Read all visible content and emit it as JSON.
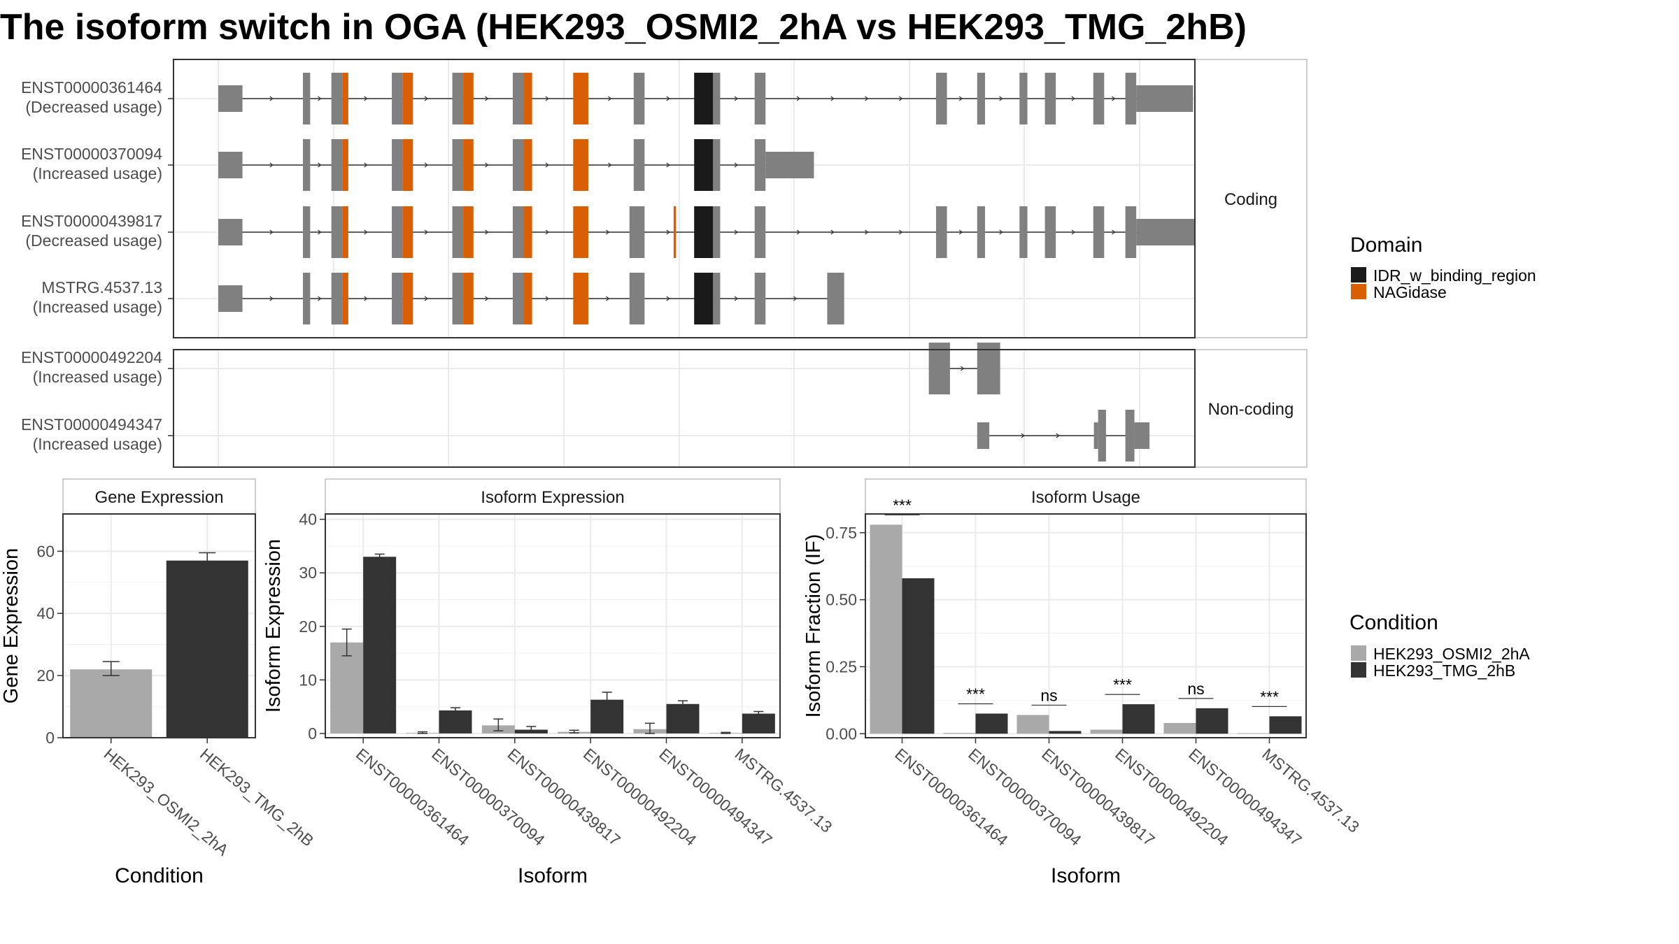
{
  "title": "The isoform switch in OGA (HEK293_OSMI2_2hA vs HEK293_TMG_2hB)",
  "colors": {
    "exon": "#808080",
    "IDR_w_binding_region": "#1a1a1a",
    "NAGidase": "#d95f02",
    "condA": "#a9a9a9",
    "condB": "#333333",
    "grid": "#ebebeb",
    "strip_bg": "#ffffff",
    "panel_border": "#333333"
  },
  "structure": {
    "coding_label": "Coding",
    "noncoding_label": "Non-coding",
    "isoforms": [
      {
        "id": "ENST00000361464",
        "usage": "(Decreased usage)",
        "group": "coding",
        "exons": [
          [
            0,
            40
          ],
          [
            140,
            152
          ],
          [
            187,
            205
          ],
          [
            287,
            305
          ],
          [
            387,
            405
          ],
          [
            487,
            505
          ],
          [
            587,
            612
          ],
          [
            687,
            705
          ],
          [
            787,
            830
          ],
          [
            887,
            905
          ],
          [
            1187,
            1205
          ],
          [
            1255,
            1268
          ],
          [
            1325,
            1338
          ],
          [
            1367,
            1385
          ],
          [
            1447,
            1465
          ],
          [
            1500,
            1612
          ]
        ],
        "domains": [
          {
            "name": "NAGidase",
            "from": 205,
            "to": 215
          },
          {
            "name": "NAGidase",
            "from": 305,
            "to": 322
          },
          {
            "name": "NAGidase",
            "from": 405,
            "to": 422
          },
          {
            "name": "NAGidase",
            "from": 505,
            "to": 519
          },
          {
            "name": "NAGidase",
            "from": 587,
            "to": 612
          },
          {
            "name": "IDR_w_binding_region",
            "from": 787,
            "to": 818
          }
        ]
      },
      {
        "id": "ENST00000370094",
        "usage": "(Increased usage)",
        "group": "coding",
        "exons": [
          [
            0,
            40
          ],
          [
            140,
            152
          ],
          [
            187,
            205
          ],
          [
            287,
            305
          ],
          [
            387,
            405
          ],
          [
            487,
            505
          ],
          [
            587,
            612
          ],
          [
            687,
            705
          ],
          [
            787,
            830
          ],
          [
            887,
            985
          ]
        ],
        "domains": [
          {
            "name": "NAGidase",
            "from": 205,
            "to": 215
          },
          {
            "name": "NAGidase",
            "from": 305,
            "to": 322
          },
          {
            "name": "NAGidase",
            "from": 405,
            "to": 422
          },
          {
            "name": "NAGidase",
            "from": 505,
            "to": 519
          },
          {
            "name": "NAGidase",
            "from": 587,
            "to": 612
          },
          {
            "name": "IDR_w_binding_region",
            "from": 787,
            "to": 818
          }
        ]
      },
      {
        "id": "ENST00000439817",
        "usage": "(Decreased usage)",
        "group": "coding",
        "exons": [
          [
            0,
            40
          ],
          [
            140,
            152
          ],
          [
            187,
            205
          ],
          [
            287,
            305
          ],
          [
            387,
            405
          ],
          [
            487,
            505
          ],
          [
            587,
            612
          ],
          [
            680,
            705
          ],
          [
            787,
            830
          ],
          [
            887,
            905
          ],
          [
            1187,
            1205
          ],
          [
            1255,
            1268
          ],
          [
            1325,
            1338
          ],
          [
            1367,
            1385
          ],
          [
            1447,
            1465
          ],
          [
            1500,
            1615
          ]
        ],
        "domains": [
          {
            "name": "NAGidase",
            "from": 205,
            "to": 215
          },
          {
            "name": "NAGidase",
            "from": 305,
            "to": 322
          },
          {
            "name": "NAGidase",
            "from": 405,
            "to": 422
          },
          {
            "name": "NAGidase",
            "from": 505,
            "to": 519
          },
          {
            "name": "NAGidase",
            "from": 587,
            "to": 612
          },
          {
            "name": "NAGidase",
            "from": 753,
            "to": 757
          },
          {
            "name": "IDR_w_binding_region",
            "from": 787,
            "to": 818
          }
        ]
      },
      {
        "id": "MSTRG.4537.13",
        "usage": "(Increased usage)",
        "group": "coding",
        "exons": [
          [
            0,
            40
          ],
          [
            140,
            152
          ],
          [
            187,
            205
          ],
          [
            287,
            305
          ],
          [
            387,
            405
          ],
          [
            487,
            505
          ],
          [
            587,
            612
          ],
          [
            680,
            705
          ],
          [
            787,
            830
          ],
          [
            887,
            905
          ],
          [
            1007,
            1035
          ]
        ],
        "domains": [
          {
            "name": "NAGidase",
            "from": 205,
            "to": 215
          },
          {
            "name": "NAGidase",
            "from": 305,
            "to": 322
          },
          {
            "name": "NAGidase",
            "from": 405,
            "to": 422
          },
          {
            "name": "NAGidase",
            "from": 505,
            "to": 519
          },
          {
            "name": "NAGidase",
            "from": 587,
            "to": 612
          },
          {
            "name": "IDR_w_binding_region",
            "from": 787,
            "to": 818
          }
        ]
      },
      {
        "id": "ENST00000492204",
        "usage": "(Increased usage)",
        "group": "noncoding",
        "exons": [
          [
            1175,
            1210
          ],
          [
            1255,
            1293
          ]
        ],
        "domains": []
      },
      {
        "id": "ENST00000494347",
        "usage": "(Increased usage)",
        "group": "noncoding",
        "exons": [
          [
            1255,
            1275
          ],
          [
            1448,
            1468
          ],
          [
            1500,
            1540
          ]
        ],
        "domains": []
      }
    ]
  },
  "legend_domain": {
    "title": "Domain",
    "items": [
      "IDR_w_binding_region",
      "NAGidase"
    ]
  },
  "legend_condition": {
    "title": "Condition",
    "items": [
      "HEK293_OSMI2_2hA",
      "HEK293_TMG_2hB"
    ]
  },
  "chart_data": [
    {
      "type": "bar",
      "title": "Gene Expression",
      "xlabel": "Condition",
      "ylabel": "Gene Expression",
      "ylim": [
        0,
        72
      ],
      "yticks": [
        0,
        20,
        40,
        60
      ],
      "categories": [
        "HEK293_OSMI2_2hA",
        "HEK293_TMG_2hB"
      ],
      "values": [
        22,
        57
      ],
      "errors": [
        [
          20,
          24.5
        ],
        [
          55,
          59.5
        ]
      ]
    },
    {
      "type": "bar",
      "title": "Isoform Expression",
      "xlabel": "Isoform",
      "ylabel": "Isoform Expression",
      "ylim": [
        -0.8,
        41
      ],
      "yticks": [
        0,
        10,
        20,
        30,
        40
      ],
      "categories": [
        "ENST00000361464",
        "ENST00000370094",
        "ENST00000439817",
        "ENST00000492204",
        "ENST00000494347",
        "MSTRG.4537.13"
      ],
      "series": [
        {
          "name": "HEK293_OSMI2_2hA",
          "values": [
            17,
            0.1,
            1.5,
            0.3,
            0.8,
            0.1
          ],
          "errors": [
            [
              14.5,
              19.5
            ],
            [
              0,
              0.3
            ],
            [
              0.5,
              2.7
            ],
            [
              0.1,
              0.6
            ],
            [
              0,
              1.9
            ],
            [
              0,
              0.2
            ]
          ]
        },
        {
          "name": "HEK293_TMG_2hB",
          "values": [
            33,
            4.3,
            0.7,
            6.3,
            5.5,
            3.7
          ],
          "errors": [
            [
              32.5,
              33.5
            ],
            [
              3.9,
              4.8
            ],
            [
              0.2,
              1.3
            ],
            [
              5.3,
              7.7
            ],
            [
              5.0,
              6.1
            ],
            [
              3.2,
              4.1
            ]
          ]
        }
      ]
    },
    {
      "type": "bar",
      "title": "Isoform Usage",
      "xlabel": "Isoform",
      "ylabel": "Isoform Fraction (IF)",
      "ylim": [
        -0.015,
        0.82
      ],
      "yticks": [
        "0.00",
        "0.25",
        "0.50",
        "0.75"
      ],
      "categories": [
        "ENST00000361464",
        "ENST00000370094",
        "ENST00000439817",
        "ENST00000492204",
        "ENST00000494347",
        "MSTRG.4537.13"
      ],
      "series": [
        {
          "name": "HEK293_OSMI2_2hA",
          "values": [
            0.78,
            0.003,
            0.07,
            0.015,
            0.04,
            0.002
          ]
        },
        {
          "name": "HEK293_TMG_2hB",
          "values": [
            0.58,
            0.075,
            0.01,
            0.11,
            0.095,
            0.065
          ]
        }
      ],
      "significance": [
        "***",
        "***",
        "ns",
        "***",
        "ns",
        "***"
      ]
    }
  ]
}
